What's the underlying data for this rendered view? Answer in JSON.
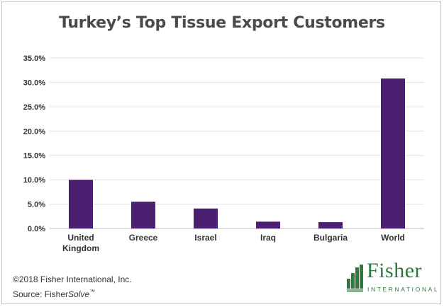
{
  "chart_data": {
    "type": "bar",
    "title": "Turkey’s Top Tissue Export Customers",
    "categories": [
      "United Kingdom",
      "Greece",
      "Israel",
      "Iraq",
      "Bulgaria",
      "World"
    ],
    "values": [
      10.0,
      5.5,
      4.1,
      1.4,
      1.3,
      30.8
    ],
    "ylim": [
      0,
      35
    ],
    "y_ticks": [
      "0.0%",
      "5.0%",
      "10.0%",
      "15.0%",
      "20.0%",
      "25.0%",
      "30.0%",
      "35.0%"
    ],
    "grid": true,
    "bar_color": "#4b2070"
  },
  "footer": {
    "copyright": "©2018 Fisher International, Inc.",
    "source_prefix": "Source: Fisher",
    "source_italic": "Solve",
    "source_tm": "™"
  },
  "logo": {
    "word": "Fisher",
    "sub": "INTERNATIONAL",
    "color": "#2d7a3e"
  }
}
